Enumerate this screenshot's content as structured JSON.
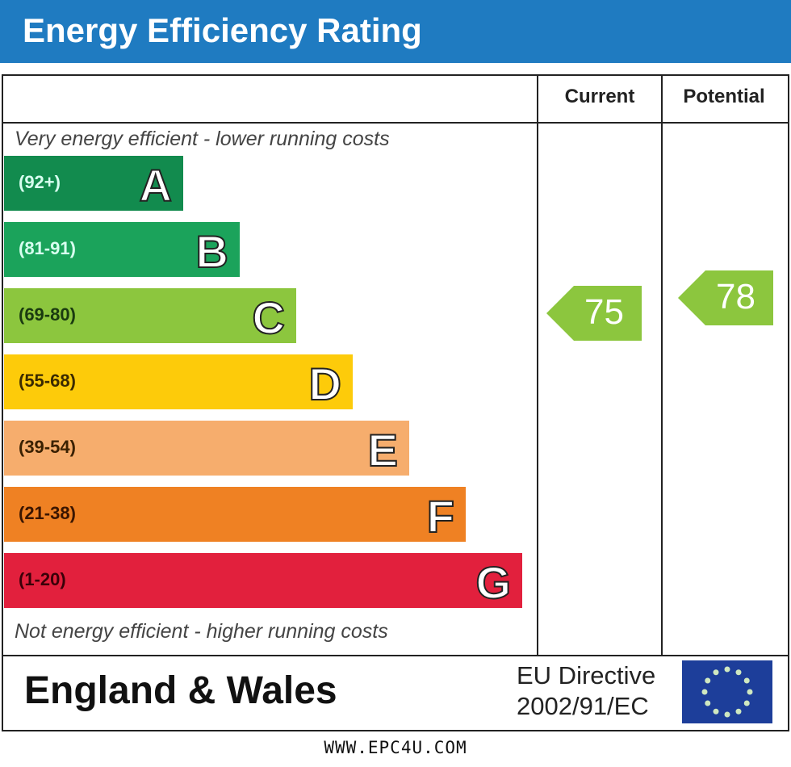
{
  "title": "Energy Efficiency Rating",
  "columns": {
    "current": "Current",
    "potential": "Potential"
  },
  "notes": {
    "top": "Very energy efficient - lower running costs",
    "bottom": "Not energy efficient - higher running costs"
  },
  "footer": {
    "region": "England & Wales",
    "directive_line1": "EU Directive",
    "directive_line2": "2002/91/EC",
    "website": "WWW.EPC4U.COM"
  },
  "chart_data": {
    "type": "bar",
    "title": "Energy Efficiency Rating",
    "bands": [
      {
        "letter": "A",
        "range": "(92+)",
        "min": 92,
        "max": 100,
        "color": "#128b4e",
        "text_color": "#d8fff0"
      },
      {
        "letter": "B",
        "range": "(81-91)",
        "min": 81,
        "max": 91,
        "color": "#1ba35b",
        "text_color": "#d8fff0"
      },
      {
        "letter": "C",
        "range": "(69-80)",
        "min": 69,
        "max": 80,
        "color": "#8cc63e",
        "text_color": "#1a3a10"
      },
      {
        "letter": "D",
        "range": "(55-68)",
        "min": 55,
        "max": 68,
        "color": "#fdcb0a",
        "text_color": "#3a2a00"
      },
      {
        "letter": "E",
        "range": "(39-54)",
        "min": 39,
        "max": 54,
        "color": "#f6ad6d",
        "text_color": "#3a2000"
      },
      {
        "letter": "F",
        "range": "(21-38)",
        "min": 21,
        "max": 38,
        "color": "#ef8123",
        "text_color": "#3a1500"
      },
      {
        "letter": "G",
        "range": "(1-20)",
        "min": 1,
        "max": 20,
        "color": "#e2203d",
        "text_color": "#3a0008"
      }
    ],
    "current": {
      "value": 75,
      "band": "C",
      "label": "75"
    },
    "potential": {
      "value": 78,
      "band": "C",
      "label": "78"
    }
  }
}
